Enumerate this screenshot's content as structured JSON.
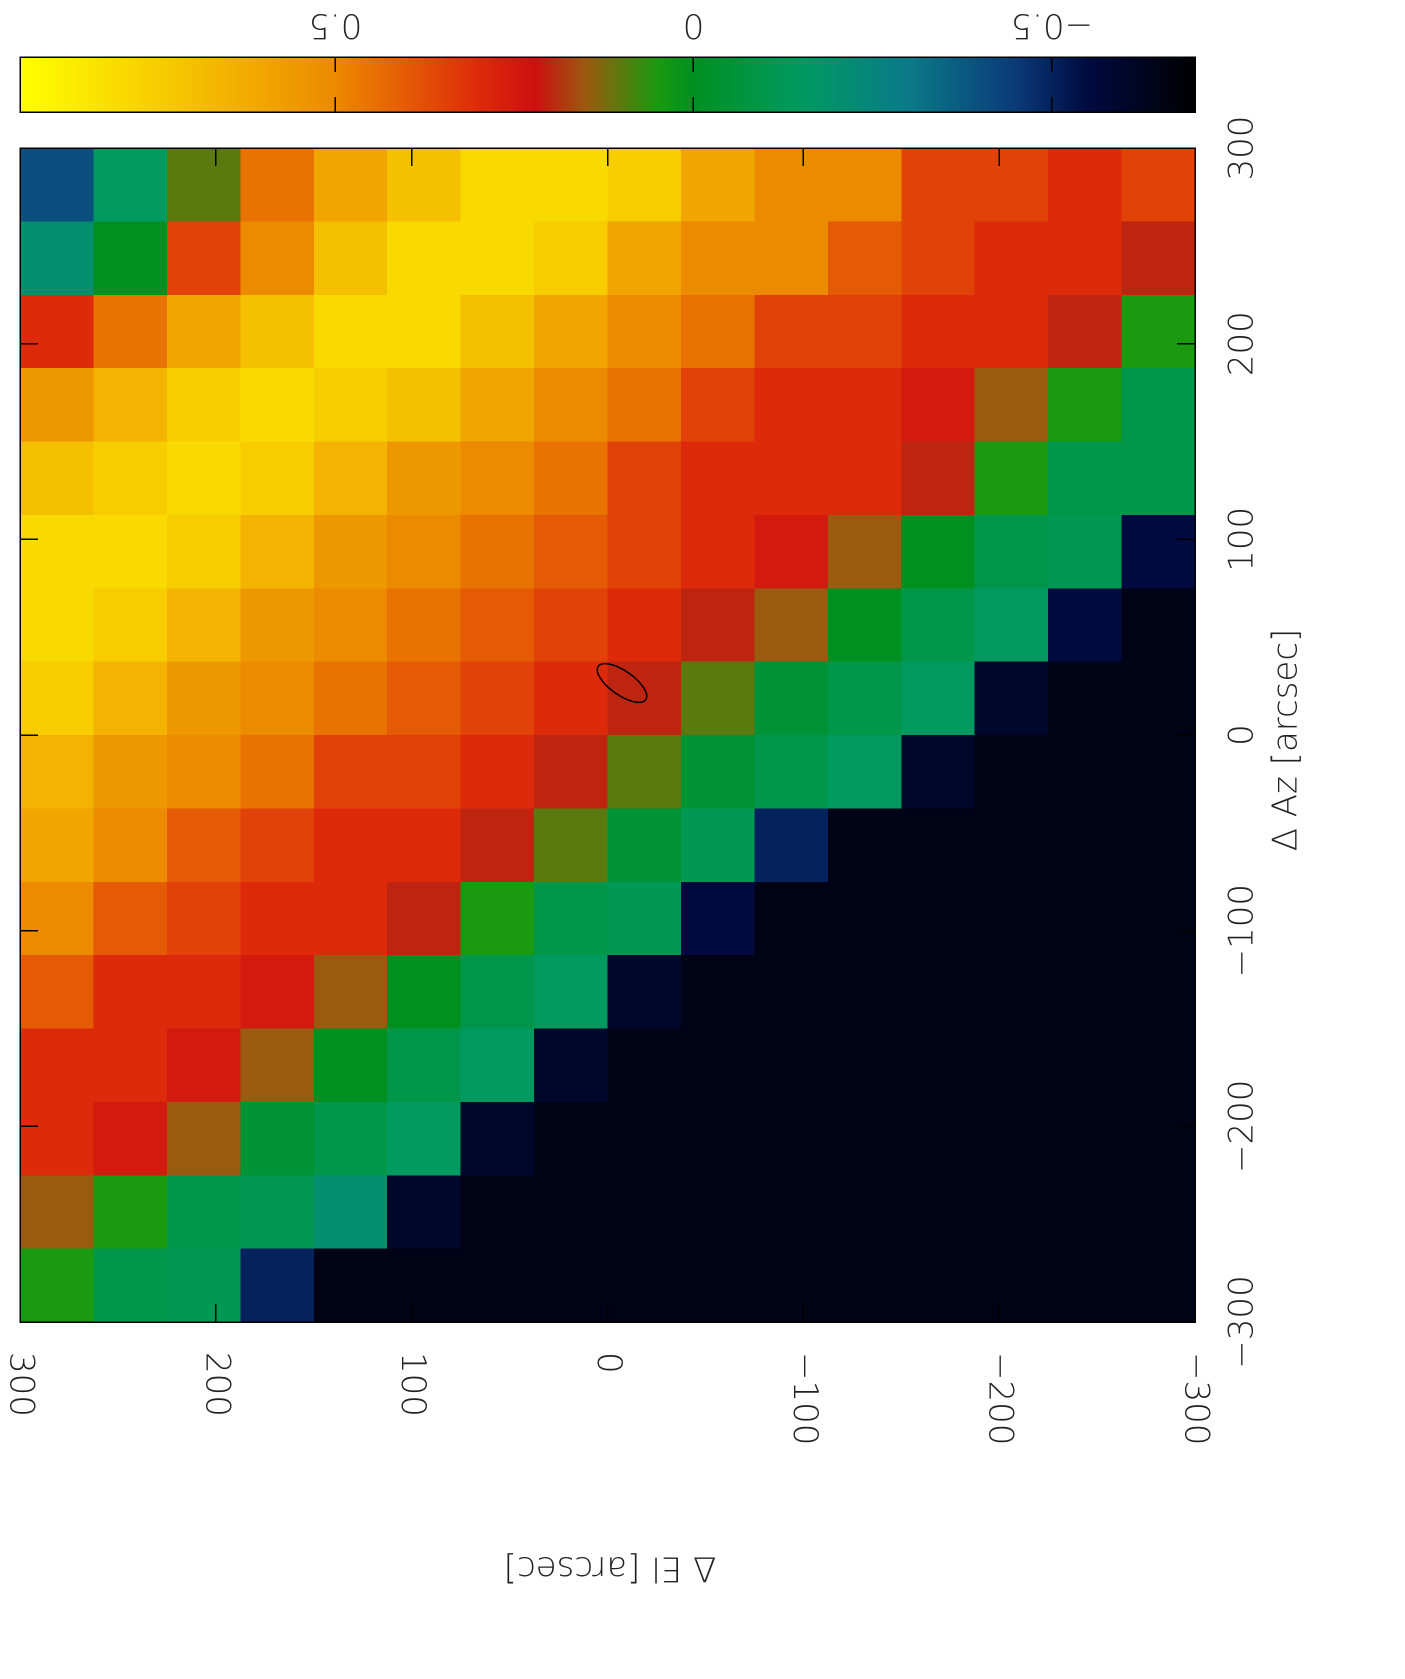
{
  "chart_data": {
    "type": "heatmap",
    "xlabel": "Δ El [arcsec]",
    "ylabel": "Δ Az [arcsec]",
    "xlim": [
      300,
      -300
    ],
    "xticks": [
      300,
      200,
      100,
      0,
      {
        "value": -100,
        "label": "−100"
      },
      {
        "value": -200,
        "label": "−200"
      },
      {
        "value": -300,
        "label": "−300"
      }
    ],
    "ylim": [
      -300,
      300
    ],
    "yticks": [
      {
        "value": -300,
        "label": "−300"
      },
      {
        "value": -200,
        "label": "−200"
      },
      {
        "value": -100,
        "label": "−100"
      },
      0,
      100,
      200,
      300
    ],
    "x": [
      281.25,
      243.75,
      206.25,
      168.75,
      131.25,
      93.75,
      56.25,
      18.75,
      -18.75,
      -56.25,
      -93.75,
      -131.25,
      -168.75,
      -206.25,
      -243.75,
      -281.25
    ],
    "y": [
      281.25,
      243.75,
      206.25,
      168.75,
      131.25,
      93.75,
      56.25,
      18.75,
      -18.75,
      -56.25,
      -93.75,
      -131.25,
      -168.75,
      -206.25,
      -243.75,
      -281.25
    ],
    "z": [
      [
        -0.4,
        -0.15,
        0.1,
        0.45,
        0.6,
        0.7,
        0.8,
        0.8,
        0.75,
        0.6,
        0.5,
        0.5,
        0.35,
        0.35,
        0.3,
        0.35
      ],
      [
        -0.2,
        0.0,
        0.35,
        0.5,
        0.7,
        0.8,
        0.8,
        0.75,
        0.6,
        0.5,
        0.5,
        0.4,
        0.35,
        0.3,
        0.3,
        0.2
      ],
      [
        0.3,
        0.45,
        0.6,
        0.7,
        0.8,
        0.8,
        0.7,
        0.6,
        0.5,
        0.45,
        0.35,
        0.35,
        0.3,
        0.3,
        0.2,
        0.05
      ],
      [
        0.55,
        0.65,
        0.75,
        0.8,
        0.75,
        0.7,
        0.6,
        0.5,
        0.45,
        0.35,
        0.3,
        0.3,
        0.25,
        0.15,
        0.05,
        -0.1
      ],
      [
        0.7,
        0.75,
        0.8,
        0.75,
        0.65,
        0.55,
        0.5,
        0.45,
        0.35,
        0.3,
        0.3,
        0.3,
        0.2,
        0.05,
        -0.1,
        -0.1
      ],
      [
        0.8,
        0.8,
        0.75,
        0.65,
        0.55,
        0.5,
        0.45,
        0.4,
        0.35,
        0.3,
        0.25,
        0.15,
        0.0,
        -0.1,
        -0.12,
        -0.55
      ],
      [
        0.8,
        0.75,
        0.65,
        0.55,
        0.5,
        0.45,
        0.4,
        0.35,
        0.3,
        0.2,
        0.15,
        0.0,
        -0.1,
        -0.15,
        -0.55,
        -0.65
      ],
      [
        0.75,
        0.65,
        0.55,
        0.5,
        0.45,
        0.4,
        0.35,
        0.3,
        0.2,
        0.1,
        -0.05,
        -0.1,
        -0.15,
        -0.6,
        -0.65,
        -0.65
      ],
      [
        0.65,
        0.55,
        0.5,
        0.45,
        0.35,
        0.35,
        0.3,
        0.2,
        0.1,
        -0.05,
        -0.1,
        -0.15,
        -0.6,
        -0.65,
        -0.65,
        -0.65
      ],
      [
        0.6,
        0.5,
        0.4,
        0.35,
        0.3,
        0.3,
        0.2,
        0.1,
        -0.05,
        -0.12,
        -0.5,
        -0.65,
        -0.65,
        -0.65,
        -0.65,
        -0.65
      ],
      [
        0.5,
        0.4,
        0.35,
        0.3,
        0.3,
        0.2,
        0.05,
        -0.1,
        -0.12,
        -0.55,
        -0.65,
        -0.65,
        -0.65,
        -0.65,
        -0.65,
        -0.65
      ],
      [
        0.4,
        0.3,
        0.3,
        0.25,
        0.15,
        0.0,
        -0.1,
        -0.15,
        -0.6,
        -0.65,
        -0.65,
        -0.65,
        -0.65,
        -0.65,
        -0.65,
        -0.65
      ],
      [
        0.3,
        0.3,
        0.25,
        0.15,
        0.0,
        -0.1,
        -0.15,
        -0.6,
        -0.65,
        -0.65,
        -0.65,
        -0.65,
        -0.65,
        -0.65,
        -0.65,
        -0.65
      ],
      [
        0.3,
        0.25,
        0.15,
        -0.05,
        -0.1,
        -0.15,
        -0.6,
        -0.65,
        -0.65,
        -0.65,
        -0.65,
        -0.65,
        -0.65,
        -0.65,
        -0.65,
        -0.65
      ],
      [
        0.15,
        0.05,
        -0.1,
        -0.12,
        -0.2,
        -0.6,
        -0.65,
        -0.65,
        -0.65,
        -0.65,
        -0.65,
        -0.65,
        -0.65,
        -0.65,
        -0.65,
        -0.65
      ],
      [
        0.05,
        -0.1,
        -0.12,
        -0.5,
        -0.65,
        -0.65,
        -0.65,
        -0.65,
        -0.65,
        -0.65,
        -0.65,
        -0.65,
        -0.65,
        -0.65,
        -0.65,
        -0.65
      ]
    ],
    "clim": [
      0.94,
      -0.7
    ],
    "cticks": [
      {
        "value": -0.5,
        "label": "−0.5"
      },
      0,
      0.5
    ],
    "colorscale": [
      {
        "value": 0.94,
        "color": "#ffff00"
      },
      {
        "value": 0.7,
        "color": "#f5c000"
      },
      {
        "value": 0.5,
        "color": "#ec8a00"
      },
      {
        "value": 0.3,
        "color": "#dd2a0a"
      },
      {
        "value": 0.22,
        "color": "#cc1010"
      },
      {
        "value": 0.15,
        "color": "#9a5a10"
      },
      {
        "value": 0.05,
        "color": "#1a9a10"
      },
      {
        "value": 0,
        "color": "#009020"
      },
      {
        "value": -0.15,
        "color": "#009a60"
      },
      {
        "value": -0.3,
        "color": "#0a7a88"
      },
      {
        "value": -0.45,
        "color": "#0a3a78"
      },
      {
        "value": -0.55,
        "color": "#000a40"
      },
      {
        "value": -0.7,
        "color": "#000000"
      }
    ]
  }
}
